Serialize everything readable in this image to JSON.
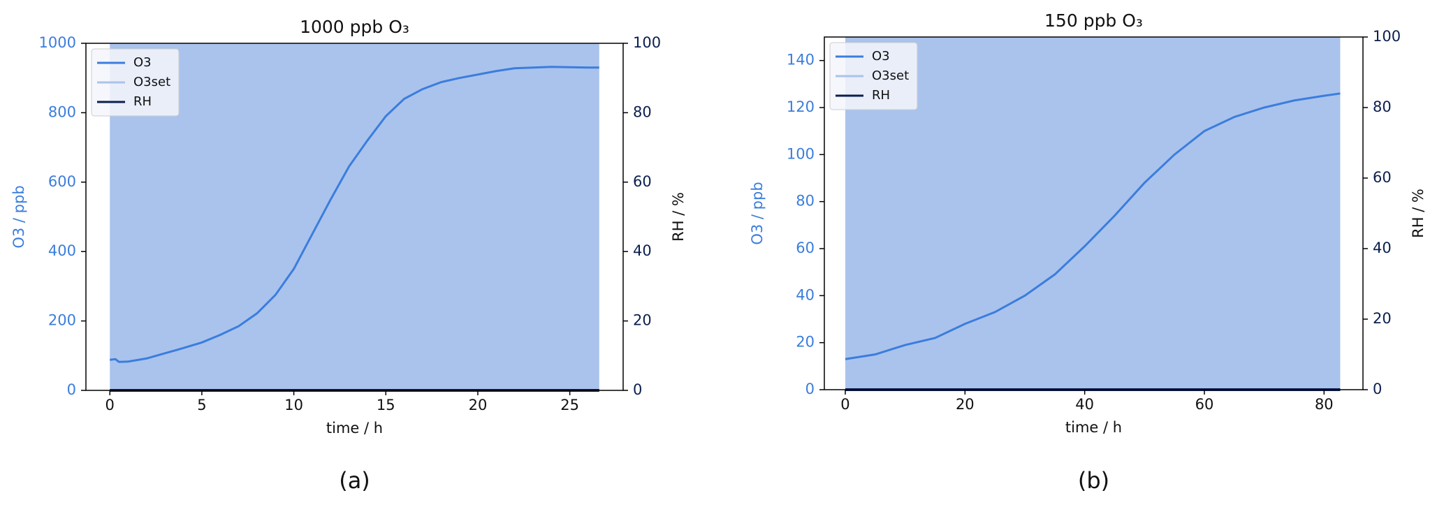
{
  "chart_data": [
    {
      "type": "line",
      "title": "1000 ppb O₃",
      "caption": "(a)",
      "xlabel": "time / h",
      "ylabel": "O3 / ppb",
      "y2label": "RH / %",
      "xlim": [
        -1.3,
        27.9
      ],
      "xticks": [
        0,
        5,
        10,
        15,
        20,
        25
      ],
      "ylim": [
        0,
        1000
      ],
      "yticks": [
        0,
        200,
        400,
        600,
        800,
        1000
      ],
      "y2lim": [
        0,
        100
      ],
      "y2ticks": [
        0,
        20,
        40,
        60,
        80,
        100
      ],
      "legend": "upper left",
      "series": [
        {
          "name": "O3",
          "color": "#3b7ddd",
          "x": [
            0,
            0.3,
            0.5,
            1,
            2,
            3,
            4,
            5,
            6,
            7,
            8,
            9,
            10,
            11,
            12,
            13,
            14,
            15,
            16,
            17,
            18,
            19,
            20,
            21,
            22,
            23,
            24,
            25,
            26,
            26.6
          ],
          "values": [
            88,
            90,
            82,
            83,
            92,
            107,
            122,
            138,
            160,
            185,
            222,
            275,
            350,
            450,
            550,
            645,
            720,
            790,
            840,
            868,
            888,
            900,
            910,
            920,
            928,
            930,
            932,
            931,
            930,
            930
          ]
        },
        {
          "name": "O3set",
          "color": "#aac3ec",
          "fill": true,
          "x": [
            0,
            26.6
          ],
          "values": [
            1000,
            1000
          ]
        },
        {
          "name": "RH",
          "color": "#0b1f4f",
          "axis": "y2",
          "x": [
            0,
            26.6
          ],
          "values": [
            0,
            0
          ]
        }
      ]
    },
    {
      "type": "line",
      "title": "150 ppb O₃",
      "caption": "(b)",
      "xlabel": "time / h",
      "ylabel": "O3 / ppb",
      "y2label": "RH / %",
      "xlim": [
        -3.5,
        86.5
      ],
      "xticks": [
        0,
        20,
        40,
        60,
        80
      ],
      "ylim": [
        0,
        150
      ],
      "yticks": [
        0,
        20,
        40,
        60,
        80,
        100,
        120,
        140
      ],
      "y2lim": [
        0,
        100
      ],
      "y2ticks": [
        0,
        20,
        40,
        60,
        80,
        100
      ],
      "legend": "upper left",
      "series": [
        {
          "name": "O3",
          "color": "#3b7ddd",
          "x": [
            0,
            5,
            10,
            15,
            20,
            25,
            30,
            35,
            40,
            45,
            50,
            55,
            60,
            65,
            70,
            75,
            80,
            82.7
          ],
          "values": [
            13,
            15,
            19,
            22,
            28,
            33,
            40,
            49,
            61,
            74,
            88,
            100,
            110,
            116,
            120,
            123,
            125,
            126
          ]
        },
        {
          "name": "O3set",
          "color": "#aac3ec",
          "fill": true,
          "x": [
            0,
            82.7
          ],
          "values": [
            150,
            150
          ]
        },
        {
          "name": "RH",
          "color": "#0b1f4f",
          "axis": "y2",
          "x": [
            0,
            82.7
          ],
          "values": [
            0,
            0
          ]
        }
      ]
    }
  ]
}
